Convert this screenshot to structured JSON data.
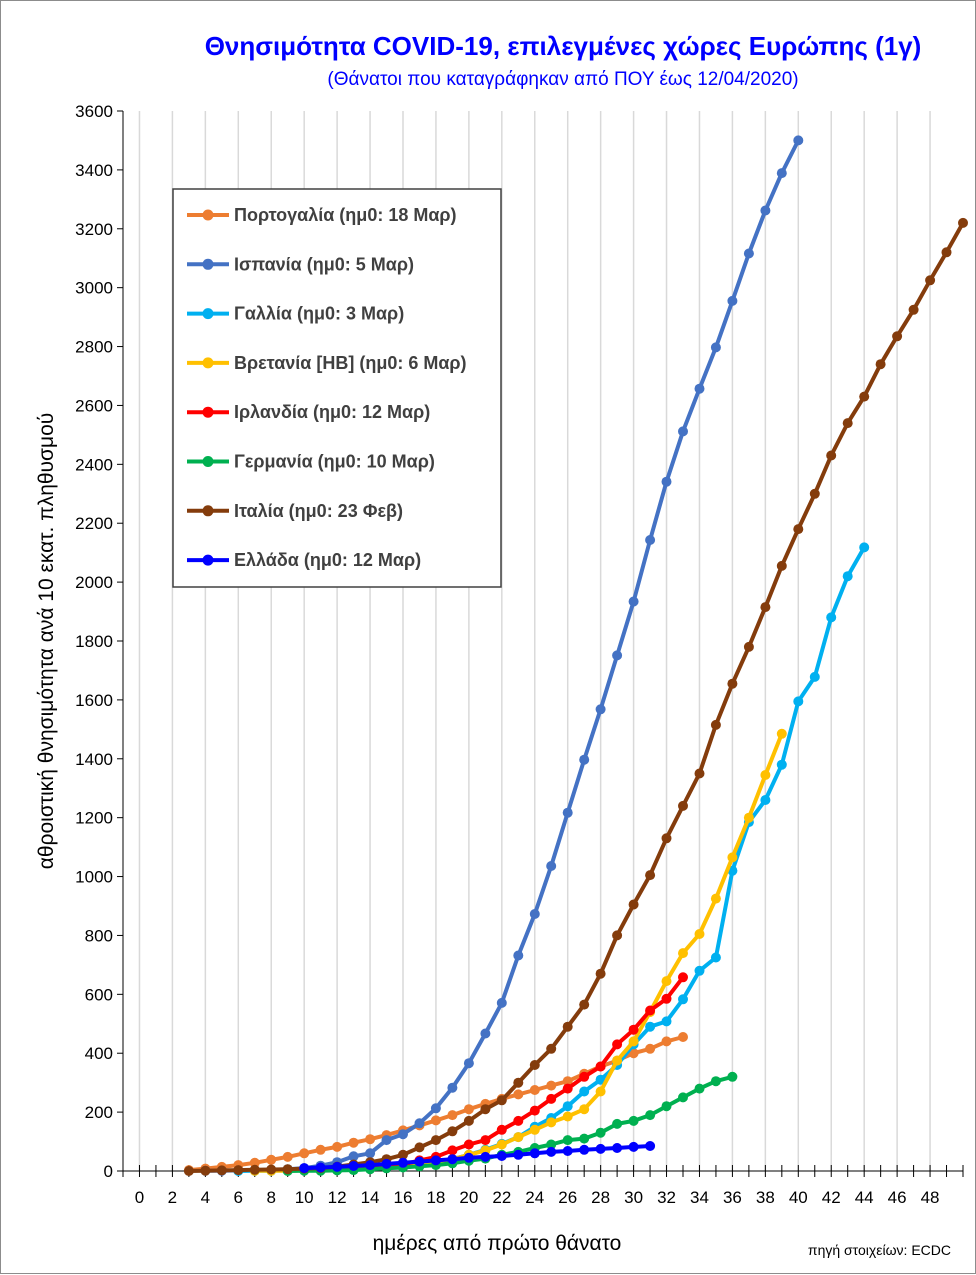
{
  "chart_data": {
    "type": "line",
    "title": "Θνησιμότητα COVID-19, επιλεγμένες χώρες Ευρώπης (1γ)",
    "subtitle": "(Θάνατοι που καταγράφηκαν από ΠΟΥ έως 12/04/2020)",
    "xlabel": "ημέρες από πρώτο θάνατο",
    "ylabel": "αθροιστική θνησιμότητα ανά 10 εκατ. πληθυσμού",
    "source": "πηγή στοιχείων: ECDC",
    "xlim": [
      -1,
      50
    ],
    "ylim": [
      0,
      3600
    ],
    "x_ticks": [
      "0",
      "2",
      "4",
      "6",
      "8",
      "10",
      "12",
      "14",
      "16",
      "18",
      "20",
      "22",
      "24",
      "26",
      "28",
      "30",
      "32",
      "34",
      "36",
      "38",
      "40",
      "42",
      "44",
      "46",
      "48"
    ],
    "y_ticks": [
      "0",
      "200",
      "400",
      "600",
      "800",
      "1000",
      "1200",
      "1400",
      "1600",
      "1800",
      "2000",
      "2200",
      "2400",
      "2600",
      "2800",
      "3000",
      "3200",
      "3400",
      "3600"
    ],
    "grid": "vertical",
    "legend_position": "top-left",
    "series": [
      {
        "name": "Πορτογαλία (ημ0: 18 Μαρ)",
        "color": "#ed7d31",
        "x_start": 3,
        "values": [
          3,
          8,
          14,
          20,
          28,
          38,
          48,
          60,
          72,
          82,
          96,
          108,
          122,
          138,
          155,
          172,
          190,
          210,
          228,
          245,
          260,
          275,
          290,
          305,
          330,
          355,
          375,
          400,
          415,
          440,
          455
        ]
      },
      {
        "name": "Ισπανία (ημ0: 5 Μαρ)",
        "color": "#4472c4",
        "x_start": 4,
        "values": [
          1,
          1,
          2,
          3,
          4,
          6,
          10,
          18,
          30,
          50,
          60,
          105,
          125,
          162,
          213,
          283,
          366,
          467,
          571,
          732,
          873,
          1036,
          1217,
          1397,
          1568,
          1751,
          1934,
          2143,
          2341,
          2512,
          2657,
          2797,
          2955,
          3116,
          3262,
          3389,
          3500
        ]
      },
      {
        "name": "Γαλλία (ημ0: 3 Μαρ)",
        "color": "#00b0f0",
        "x_start": 6,
        "values": [
          0,
          1,
          1,
          2,
          2,
          3,
          4,
          6,
          8,
          12,
          17,
          22,
          30,
          40,
          55,
          72,
          92,
          115,
          150,
          180,
          220,
          270,
          310,
          360,
          430,
          490,
          508,
          583,
          680,
          725,
          1020,
          1185,
          1260,
          1380,
          1595,
          1678,
          1880,
          2020,
          2118
        ]
      },
      {
        "name": "Βρετανία [ΗΒ] (ημ0: 6 Μαρ)",
        "color": "#ffc000",
        "x_start": 7,
        "values": [
          1,
          1,
          1,
          2,
          3,
          4,
          6,
          8,
          12,
          16,
          24,
          32,
          40,
          55,
          70,
          90,
          115,
          140,
          165,
          185,
          210,
          270,
          375,
          440,
          540,
          645,
          740,
          805,
          925,
          1065,
          1200,
          1345,
          1485
        ]
      },
      {
        "name": "Ιρλανδία (ημ0: 12 Μαρ)",
        "color": "#ff0000",
        "x_start": 11,
        "values": [
          2,
          4,
          6,
          10,
          15,
          22,
          36,
          48,
          70,
          90,
          105,
          140,
          170,
          205,
          245,
          280,
          320,
          355,
          430,
          480,
          545,
          585,
          658
        ]
      },
      {
        "name": "Γερμανία (ημ0: 10 Μαρ)",
        "color": "#00b050",
        "x_start": 9,
        "values": [
          0,
          1,
          1,
          2,
          3,
          6,
          9,
          12,
          16,
          20,
          26,
          35,
          42,
          55,
          65,
          78,
          90,
          105,
          110,
          130,
          160,
          170,
          190,
          220,
          250,
          280,
          305,
          320
        ]
      },
      {
        "name": "Ιταλία (ημ0: 23 Φεβ)",
        "color": "#843c0c",
        "x_start": 3,
        "values": [
          0,
          1,
          2,
          3,
          4,
          5,
          6,
          8,
          10,
          15,
          22,
          30,
          40,
          55,
          80,
          105,
          135,
          170,
          210,
          240,
          300,
          360,
          415,
          490,
          565,
          670,
          800,
          905,
          1005,
          1130,
          1240,
          1350,
          1515,
          1655,
          1780,
          1915,
          2055,
          2180,
          2300,
          2430,
          2540,
          2630,
          2740,
          2835,
          2925,
          3025,
          3120,
          3220
        ]
      },
      {
        "name": "Ελλάδα (ημ0: 12 Μαρ)",
        "color": "#0000ff",
        "x_start": 10,
        "values": [
          10,
          12,
          14,
          17,
          20,
          24,
          28,
          32,
          36,
          40,
          45,
          48,
          51,
          55,
          60,
          65,
          68,
          72,
          75,
          78,
          82,
          85
        ]
      }
    ]
  }
}
